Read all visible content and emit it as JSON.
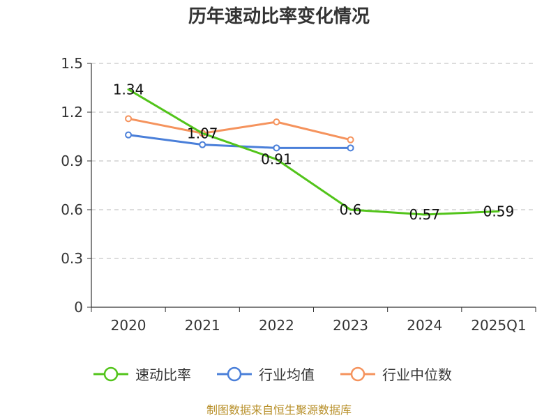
{
  "chart_data": {
    "type": "line",
    "title": "历年速动比率变化情况",
    "categories": [
      "2020",
      "2021",
      "2022",
      "2023",
      "2024",
      "2025Q1"
    ],
    "ylim": [
      0,
      1.5
    ],
    "yticks": [
      "0",
      "0.3",
      "0.6",
      "0.9",
      "1.2",
      "1.5"
    ],
    "grid": true,
    "legend_position": "bottom",
    "series": [
      {
        "name": "速动比率",
        "color": "#52c41a",
        "values": [
          1.34,
          1.07,
          0.91,
          0.6,
          0.57,
          0.59
        ],
        "labels": [
          "1.34",
          "1.07",
          "0.91",
          "0.6",
          "0.57",
          "0.59"
        ],
        "markers": false
      },
      {
        "name": "行业均值",
        "color": "#4a7fd9",
        "values": [
          1.06,
          1.0,
          0.98,
          0.98,
          null,
          null
        ],
        "markers": true
      },
      {
        "name": "行业中位数",
        "color": "#f5935d",
        "values": [
          1.16,
          1.07,
          1.14,
          1.03,
          null,
          null
        ],
        "markers": true
      }
    ]
  },
  "footer": {
    "source": "制图数据来自恒生聚源数据库"
  }
}
